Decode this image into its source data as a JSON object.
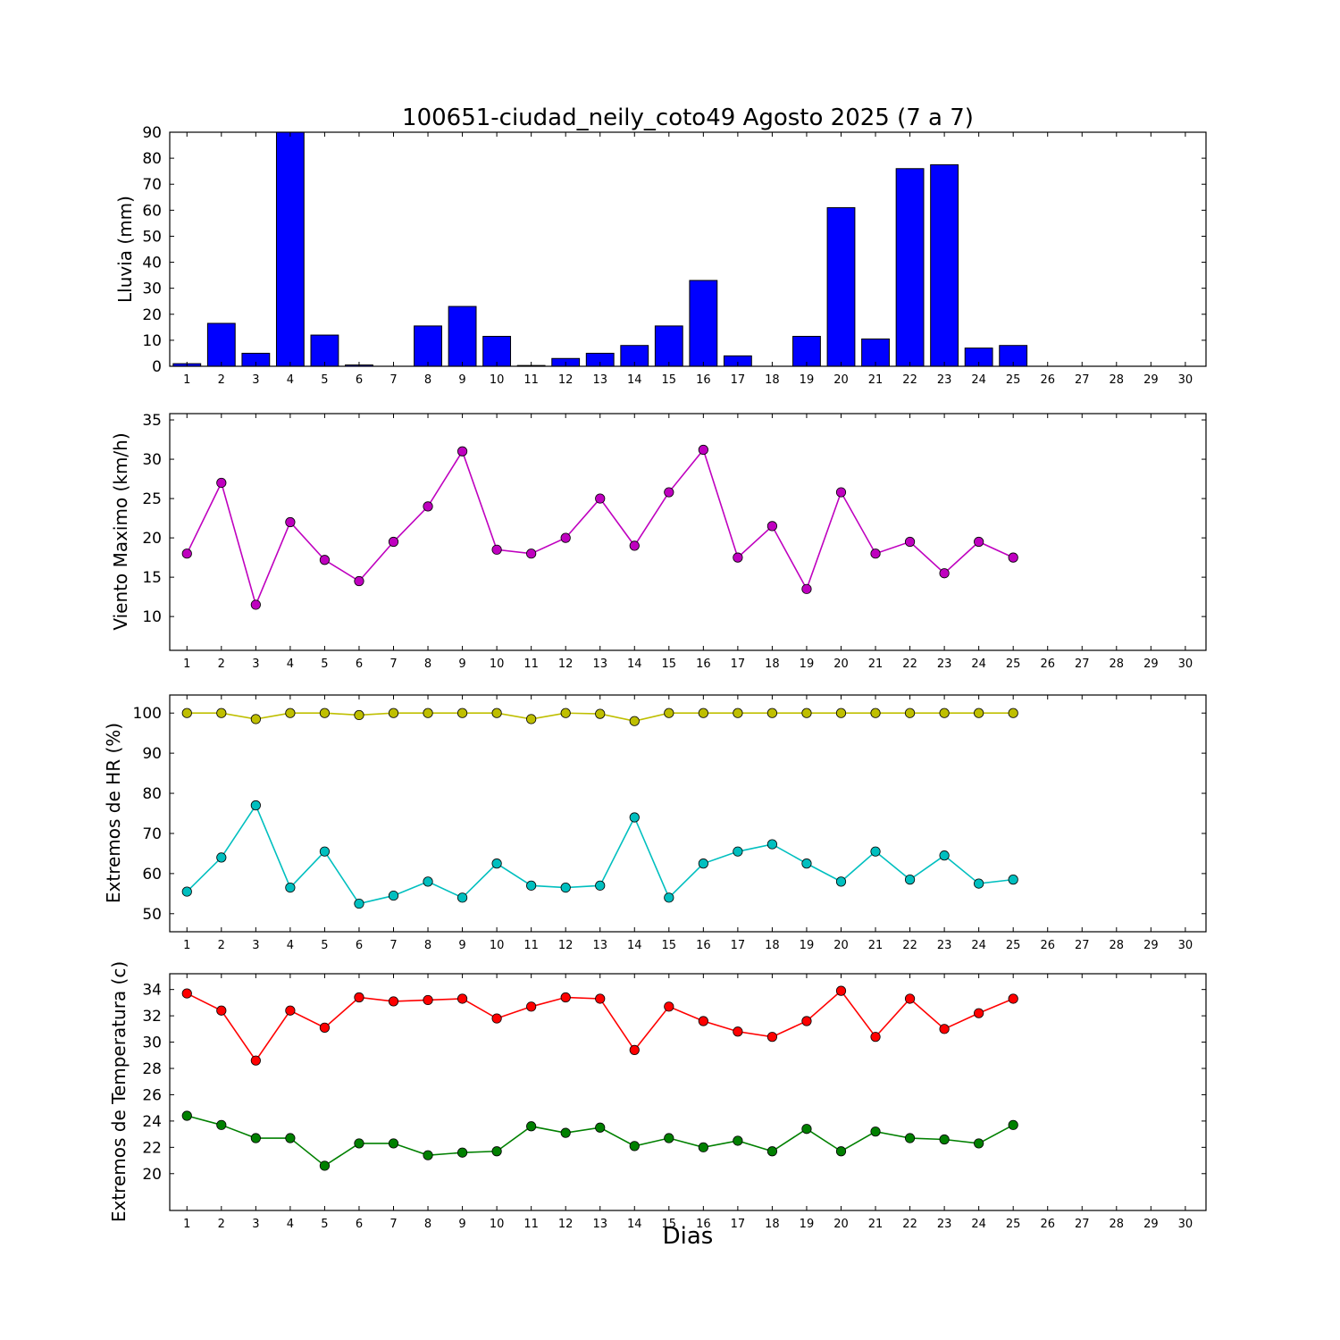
{
  "figure": {
    "title": "100651-ciudad_neily_coto49 Agosto 2025  (7 a 7)",
    "xlabel": "Dias",
    "background": "#ffffff"
  },
  "chart_data": {
    "type": "multi-panel",
    "panels": 4,
    "days": [
      1,
      2,
      3,
      4,
      5,
      6,
      7,
      8,
      9,
      10,
      11,
      12,
      13,
      14,
      15,
      16,
      17,
      18,
      19,
      20,
      21,
      22,
      23,
      24,
      25
    ],
    "xticks": [
      1,
      2,
      3,
      4,
      5,
      6,
      7,
      8,
      9,
      10,
      11,
      12,
      13,
      14,
      15,
      16,
      17,
      18,
      19,
      20,
      21,
      22,
      23,
      24,
      25,
      26,
      27,
      28,
      29,
      30
    ],
    "xlim": [
      0.5,
      30.6
    ],
    "subplots": [
      {
        "id": "lluvia",
        "type": "bar",
        "ylabel": "Lluvia (mm)",
        "bar_color": "#0000ff",
        "ylim": [
          0,
          90
        ],
        "yticks": [
          0,
          10,
          20,
          30,
          40,
          50,
          60,
          70,
          80,
          90
        ],
        "values": [
          1,
          16.5,
          5,
          90,
          12,
          0.5,
          0,
          15.5,
          23,
          11.5,
          0.3,
          3,
          5,
          8,
          15.5,
          33,
          4,
          0,
          11.5,
          61,
          10.5,
          76,
          77.5,
          7,
          8
        ]
      },
      {
        "id": "viento",
        "type": "line",
        "ylabel": "Viento Maximo (km/h)",
        "ylim": [
          5.7,
          35.8
        ],
        "yticks": [
          10,
          15,
          20,
          25,
          30,
          35
        ],
        "series": [
          {
            "name": "viento-maximo",
            "color": "#bf00bf",
            "values": [
              18,
              27,
              11.5,
              22,
              17.2,
              14.5,
              19.5,
              24,
              31,
              18.5,
              18,
              20,
              25,
              19,
              25.8,
              31.2,
              17.5,
              21.5,
              13.5,
              25.8,
              18,
              19.5,
              15.5,
              19.5,
              17.5
            ]
          }
        ]
      },
      {
        "id": "hr",
        "type": "line",
        "ylabel": "Extremos de HR (%)",
        "ylim": [
          45.5,
          104.5
        ],
        "yticks": [
          50,
          60,
          70,
          80,
          90,
          100
        ],
        "series": [
          {
            "name": "hr-maxima",
            "color": "#bfbf00",
            "values": [
              100,
              100,
              98.5,
              100,
              100,
              99.5,
              100,
              100,
              100,
              100,
              98.5,
              100,
              99.8,
              98,
              100,
              100,
              100,
              100,
              100,
              100,
              100,
              100,
              100,
              100,
              100
            ]
          },
          {
            "name": "hr-minima",
            "color": "#00bfbf",
            "values": [
              55.5,
              64,
              77,
              56.5,
              65.5,
              52.5,
              54.5,
              58,
              54,
              62.5,
              57,
              56.5,
              57,
              74,
              54,
              62.5,
              65.5,
              67.3,
              62.5,
              58,
              65.5,
              58.5,
              64.5,
              57.5,
              58.5
            ]
          }
        ]
      },
      {
        "id": "temperatura",
        "type": "line",
        "ylabel": "Extremos de Temperatura (c)",
        "ylim": [
          17.2,
          35.2
        ],
        "yticks": [
          20,
          22,
          24,
          26,
          28,
          30,
          32,
          34
        ],
        "series": [
          {
            "name": "temperatura-maxima",
            "color": "#ff0000",
            "values": [
              33.7,
              32.4,
              28.6,
              32.4,
              31.1,
              33.4,
              33.1,
              33.2,
              33.3,
              31.8,
              32.7,
              33.4,
              33.3,
              29.4,
              32.7,
              31.6,
              30.8,
              30.4,
              31.6,
              33.9,
              30.4,
              33.3,
              31.0,
              32.2,
              33.3
            ]
          },
          {
            "name": "temperatura-minima",
            "color": "#008000",
            "values": [
              24.4,
              23.7,
              22.7,
              22.7,
              20.6,
              22.3,
              22.3,
              21.4,
              21.6,
              21.7,
              23.6,
              23.1,
              23.5,
              22.1,
              22.7,
              22.0,
              22.5,
              21.7,
              23.4,
              21.7,
              23.2,
              22.7,
              22.6,
              22.3,
              23.7
            ]
          }
        ]
      }
    ]
  }
}
